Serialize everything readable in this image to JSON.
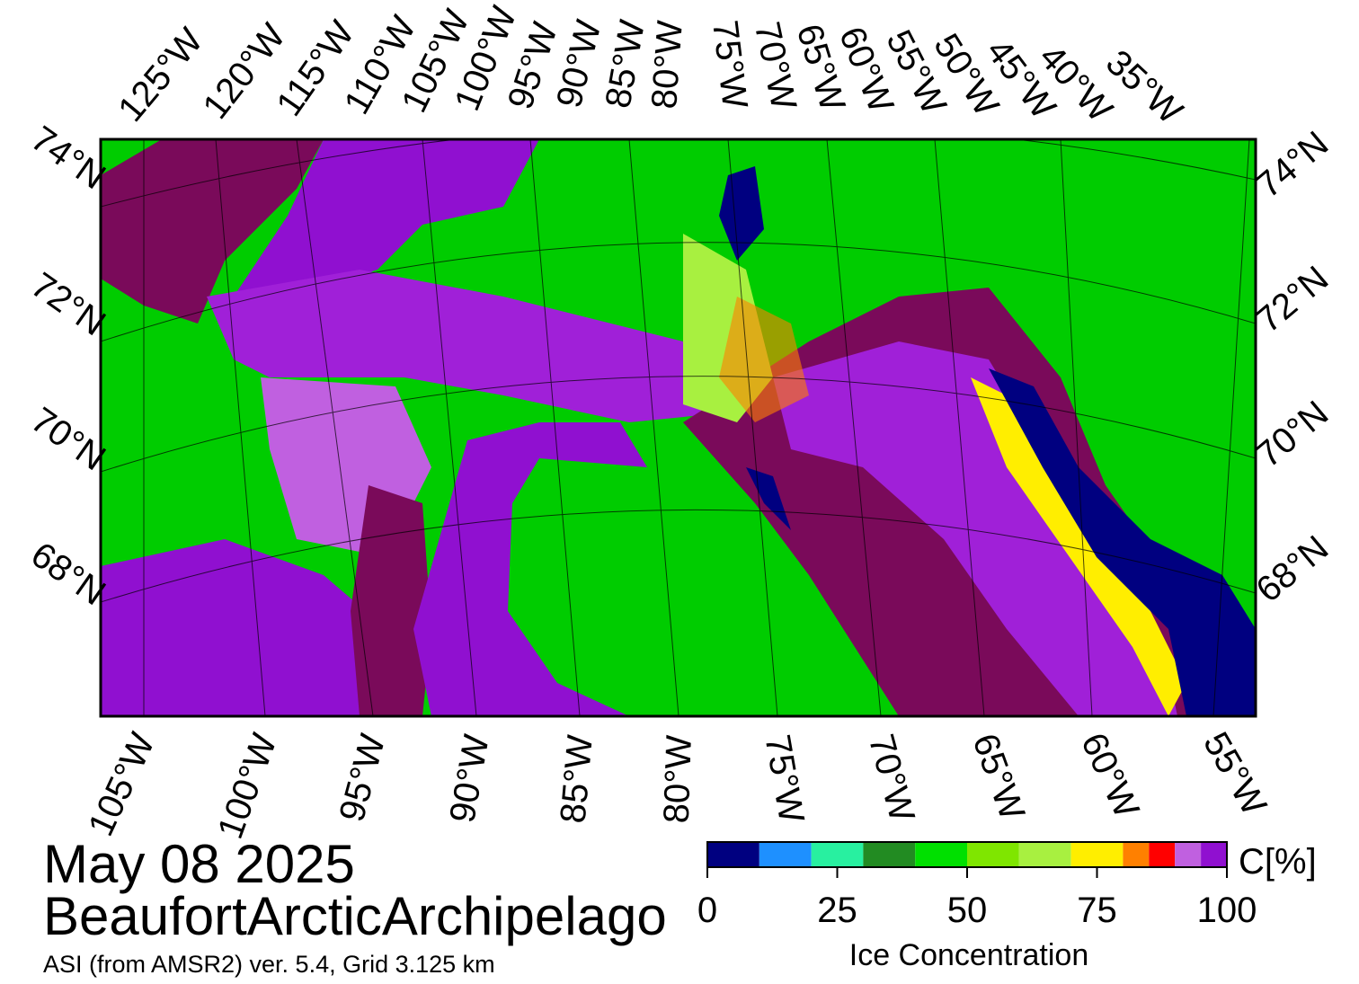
{
  "date": "May 08 2025",
  "region": "BeaufortArcticArchipelago",
  "source": "ASI (from AMSR2) ver. 5.4,  Grid 3.125 km",
  "map": {
    "top_longitudes": [
      "125°W",
      "120°W",
      "115°W",
      "110°W",
      "105°W",
      "100°W",
      "95°W",
      "90°W",
      "85°W",
      "80°W",
      "75°W",
      "70°W",
      "65°W",
      "60°W",
      "55°W",
      "50°W",
      "45°W",
      "40°W",
      "35°W"
    ],
    "bottom_longitudes": [
      "105°W",
      "100°W",
      "95°W",
      "90°W",
      "85°W",
      "80°W",
      "75°W",
      "70°W",
      "65°W",
      "60°W",
      "55°W"
    ],
    "left_latitudes": [
      "74°N",
      "72°N",
      "70°N",
      "68°N"
    ],
    "right_latitudes": [
      "74°N",
      "72°N",
      "70°N",
      "68°N"
    ]
  },
  "colorbar": {
    "unit_label": "C[%]",
    "title": "Ice Concentration",
    "lim": [
      0,
      100
    ],
    "ticks": [
      0,
      25,
      50,
      75,
      100
    ],
    "bounds": [
      0,
      10,
      20,
      30,
      40,
      50,
      60,
      70,
      80,
      85,
      90,
      95,
      100
    ],
    "colors": [
      "#000080",
      "#1e90ff",
      "#28f0a0",
      "#228b22",
      "#00e000",
      "#7fe600",
      "#a8f040",
      "#ffee00",
      "#ff8000",
      "#ff0000",
      "#c060e0",
      "#9010d0"
    ]
  }
}
